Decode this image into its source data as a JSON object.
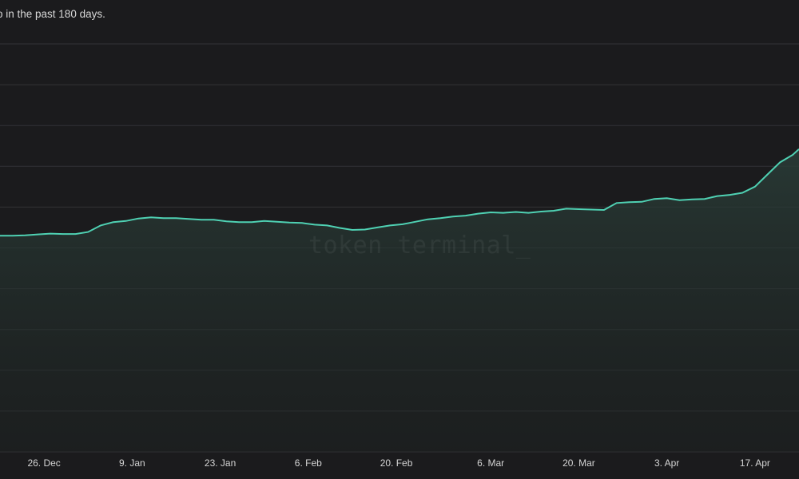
{
  "caption": "o in the past 180 days.",
  "watermark": "token terminal_",
  "colors": {
    "background": "#1b1b1d",
    "grid": "#333336",
    "line": "#4fd1b3",
    "area": "#2a3d38",
    "text": "#d4d4d4"
  },
  "chart_data": {
    "type": "area",
    "title": "",
    "xlabel": "",
    "ylabel": "",
    "grid": true,
    "y_tick_labels_visible": false,
    "ylim": [
      0,
      10
    ],
    "xlim": [
      "2023-12-19",
      "2024-04-24"
    ],
    "x_ticks": [
      {
        "date": "2023-12-26",
        "label": "26. Dec"
      },
      {
        "date": "2024-01-09",
        "label": "9. Jan"
      },
      {
        "date": "2024-01-23",
        "label": "23. Jan"
      },
      {
        "date": "2024-02-06",
        "label": "6. Feb"
      },
      {
        "date": "2024-02-20",
        "label": "20. Feb"
      },
      {
        "date": "2024-03-06",
        "label": "6. Mar"
      },
      {
        "date": "2024-03-20",
        "label": "20. Mar"
      },
      {
        "date": "2024-04-03",
        "label": "3. Apr"
      },
      {
        "date": "2024-04-17",
        "label": "17. Apr"
      }
    ],
    "series": [
      {
        "name": "",
        "points": [
          [
            "2023-12-19",
            5.3
          ],
          [
            "2023-12-21",
            5.3
          ],
          [
            "2023-12-23",
            5.31
          ],
          [
            "2023-12-25",
            5.33
          ],
          [
            "2023-12-27",
            5.35
          ],
          [
            "2023-12-29",
            5.34
          ],
          [
            "2023-12-31",
            5.34
          ],
          [
            "2024-01-02",
            5.39
          ],
          [
            "2024-01-04",
            5.55
          ],
          [
            "2024-01-06",
            5.63
          ],
          [
            "2024-01-08",
            5.66
          ],
          [
            "2024-01-10",
            5.72
          ],
          [
            "2024-01-12",
            5.75
          ],
          [
            "2024-01-14",
            5.73
          ],
          [
            "2024-01-16",
            5.73
          ],
          [
            "2024-01-18",
            5.71
          ],
          [
            "2024-01-20",
            5.69
          ],
          [
            "2024-01-22",
            5.69
          ],
          [
            "2024-01-24",
            5.65
          ],
          [
            "2024-01-26",
            5.63
          ],
          [
            "2024-01-28",
            5.63
          ],
          [
            "2024-01-30",
            5.66
          ],
          [
            "2024-02-01",
            5.64
          ],
          [
            "2024-02-03",
            5.62
          ],
          [
            "2024-02-05",
            5.61
          ],
          [
            "2024-02-07",
            5.57
          ],
          [
            "2024-02-09",
            5.55
          ],
          [
            "2024-02-11",
            5.49
          ],
          [
            "2024-02-13",
            5.44
          ],
          [
            "2024-02-15",
            5.45
          ],
          [
            "2024-02-17",
            5.5
          ],
          [
            "2024-02-19",
            5.55
          ],
          [
            "2024-02-21",
            5.58
          ],
          [
            "2024-02-23",
            5.64
          ],
          [
            "2024-02-25",
            5.7
          ],
          [
            "2024-02-27",
            5.73
          ],
          [
            "2024-02-29",
            5.77
          ],
          [
            "2024-03-02",
            5.79
          ],
          [
            "2024-03-04",
            5.84
          ],
          [
            "2024-03-06",
            5.87
          ],
          [
            "2024-03-08",
            5.86
          ],
          [
            "2024-03-10",
            5.88
          ],
          [
            "2024-03-12",
            5.86
          ],
          [
            "2024-03-14",
            5.89
          ],
          [
            "2024-03-16",
            5.91
          ],
          [
            "2024-03-18",
            5.96
          ],
          [
            "2024-03-20",
            5.95
          ],
          [
            "2024-03-22",
            5.94
          ],
          [
            "2024-03-24",
            5.93
          ],
          [
            "2024-03-26",
            6.1
          ],
          [
            "2024-03-28",
            6.12
          ],
          [
            "2024-03-30",
            6.13
          ],
          [
            "2024-04-01",
            6.2
          ],
          [
            "2024-04-03",
            6.22
          ],
          [
            "2024-04-05",
            6.17
          ],
          [
            "2024-04-07",
            6.19
          ],
          [
            "2024-04-09",
            6.2
          ],
          [
            "2024-04-11",
            6.27
          ],
          [
            "2024-04-13",
            6.3
          ],
          [
            "2024-04-15",
            6.35
          ],
          [
            "2024-04-17",
            6.5
          ],
          [
            "2024-04-19",
            6.8
          ],
          [
            "2024-04-21",
            7.1
          ],
          [
            "2024-04-23",
            7.28
          ],
          [
            "2024-04-24",
            7.42
          ]
        ]
      }
    ]
  }
}
